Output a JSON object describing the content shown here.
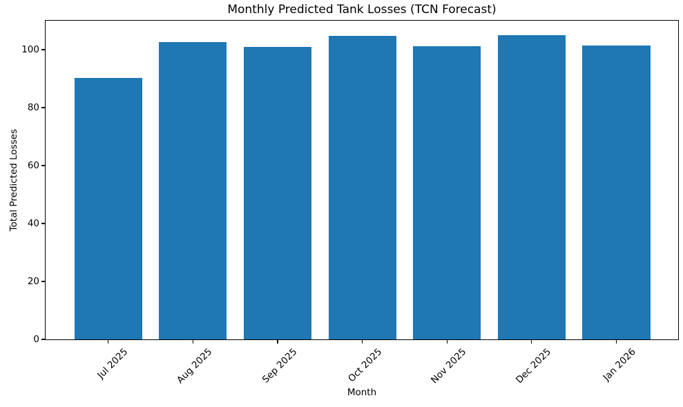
{
  "chart_data": {
    "type": "bar",
    "title": "Monthly Predicted Tank Losses (TCN Forecast)",
    "xlabel": "Month",
    "ylabel": "Total Predicted Losses",
    "categories": [
      "Jul 2025",
      "Aug 2025",
      "Sep 2025",
      "Oct 2025",
      "Nov 2025",
      "Dec 2025",
      "Jan 2026"
    ],
    "values": [
      90.2,
      102.7,
      101.0,
      104.7,
      101.3,
      105.1,
      101.4
    ],
    "bar_color": "#1f77b4",
    "bar_width": 0.8,
    "xlim": [
      -0.74,
      6.73
    ],
    "ylim": [
      0,
      110
    ],
    "yticks": [
      0,
      20,
      40,
      60,
      80,
      100
    ],
    "x_tick_rotation_deg": 45,
    "grid": false,
    "legend": null,
    "background": "#ffffff",
    "text_color": "#000000"
  }
}
